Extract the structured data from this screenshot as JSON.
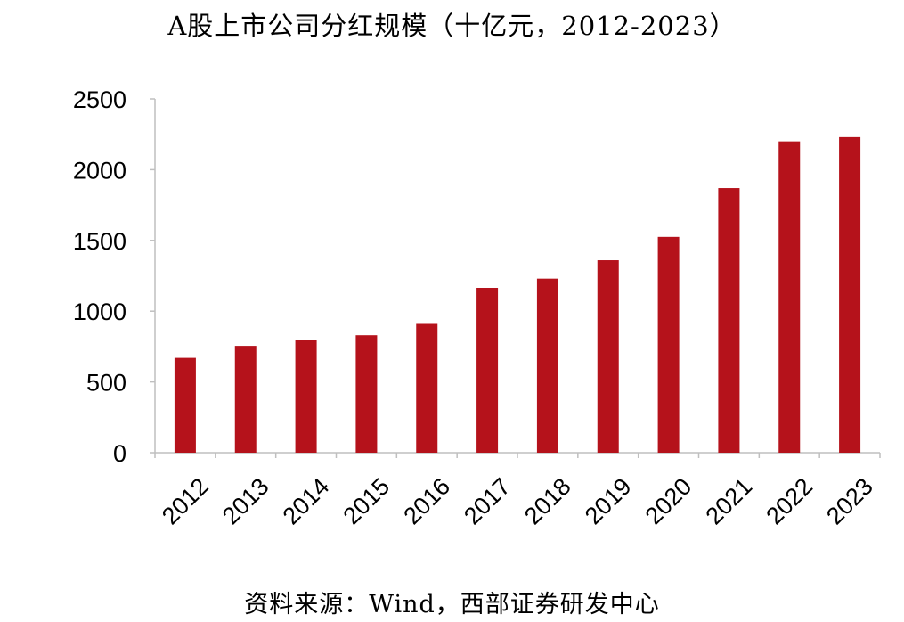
{
  "chart_data": {
    "type": "bar",
    "title": "A股上市公司分红规模（十亿元，2012-2023）",
    "xlabel": "",
    "ylabel": "",
    "categories": [
      "2012",
      "2013",
      "2014",
      "2015",
      "2016",
      "2017",
      "2018",
      "2019",
      "2020",
      "2021",
      "2022",
      "2023"
    ],
    "values": [
      670,
      755,
      795,
      830,
      910,
      1165,
      1230,
      1360,
      1525,
      1870,
      2200,
      2230
    ],
    "ylim": [
      0,
      2500
    ],
    "yticks": [
      0,
      500,
      1000,
      1500,
      2000,
      2500
    ],
    "bar_color": "#B5121B",
    "grid": false,
    "legend": "none"
  },
  "source": "资料来源：Wind，西部证券研发中心"
}
